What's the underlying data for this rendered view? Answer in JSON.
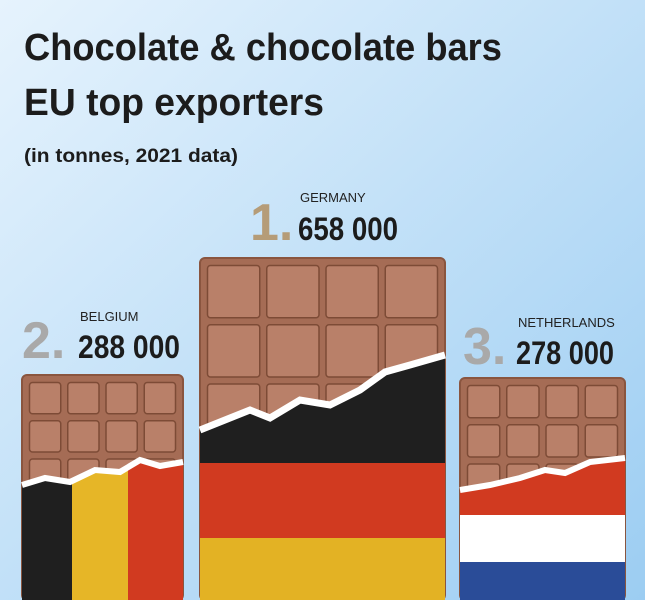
{
  "header": {
    "title_lines": [
      "Chocolate & chocolate bars",
      "EU top exporters"
    ],
    "subtitle": "(in tonnes, 2021 data)"
  },
  "entries": [
    {
      "rank": "1.",
      "country": "GERMANY",
      "value": "658 000"
    },
    {
      "rank": "2.",
      "country": "BELGIUM",
      "value": "288 000"
    },
    {
      "rank": "3.",
      "country": "NETHERLANDS",
      "value": "278 000"
    }
  ]
}
